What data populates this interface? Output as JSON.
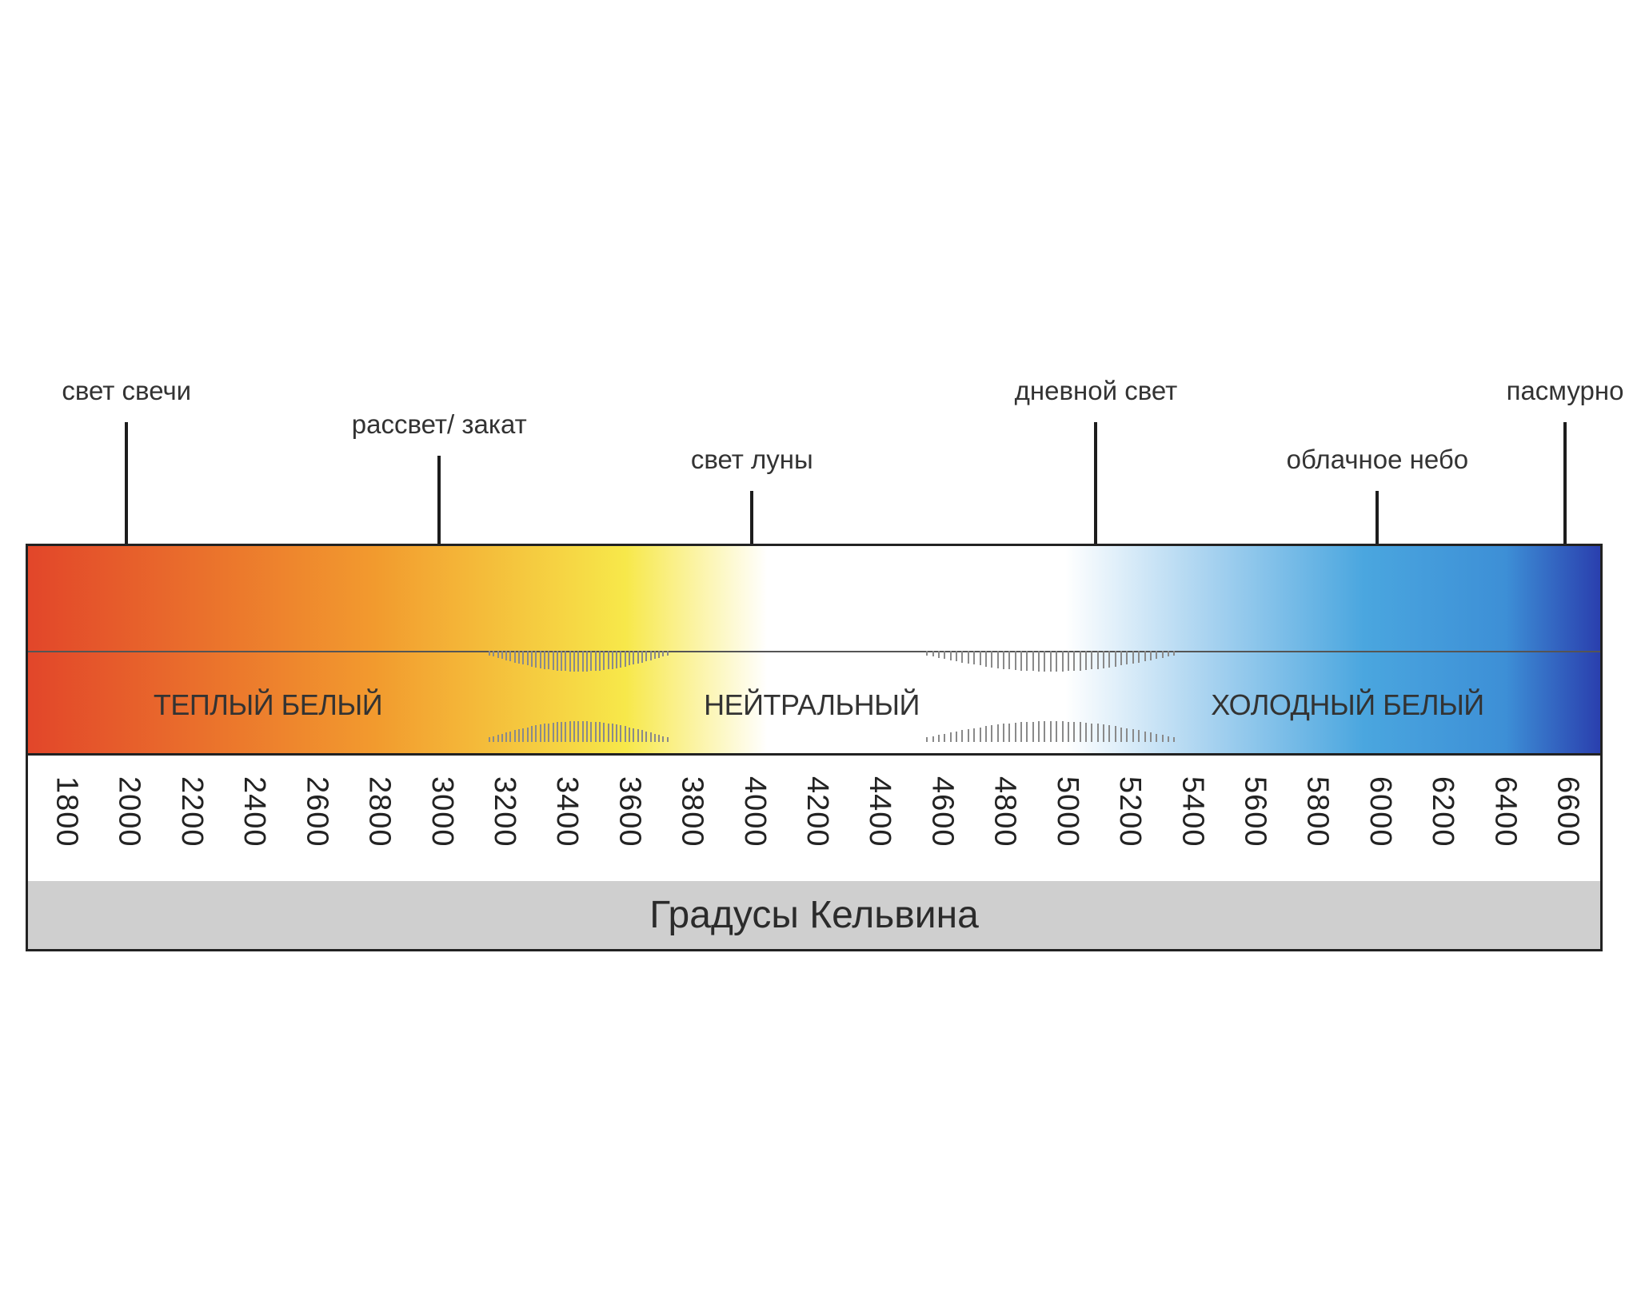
{
  "markers": [
    {
      "label": "свет свечи",
      "kelvin": 2000,
      "row": "high"
    },
    {
      "label": "рассвет/ закат",
      "kelvin": 3000,
      "row": "mid"
    },
    {
      "label": "свет луны",
      "kelvin": 4000,
      "row": "low"
    },
    {
      "label": "дневной свет",
      "kelvin": 5100,
      "row": "high"
    },
    {
      "label": "облачное небо",
      "kelvin": 6000,
      "row": "low"
    },
    {
      "label": "пасмурно",
      "kelvin": 6600,
      "row": "high"
    }
  ],
  "zones": {
    "warm": "ТЕПЛЫЙ БЕЛЫЙ",
    "neutral": "НЕЙТРАЛЬНЫЙ",
    "cold": "ХОЛОДНЫЙ БЕЛЫЙ"
  },
  "ticks": [
    "1800",
    "2000",
    "2200",
    "2400",
    "2600",
    "2800",
    "3000",
    "3200",
    "3400",
    "3600",
    "3800",
    "4000",
    "4200",
    "4400",
    "4600",
    "4800",
    "5000",
    "5200",
    "5400",
    "5600",
    "5800",
    "6000",
    "6200",
    "6400",
    "6600"
  ],
  "unit_label": "Градусы Кельвина",
  "colors": {
    "red": "#e2462a",
    "orange": "#f29a2e",
    "yellow": "#f7e84a",
    "white": "#ffffff",
    "sky": "#4aa6df",
    "blue": "#2a3fae"
  }
}
